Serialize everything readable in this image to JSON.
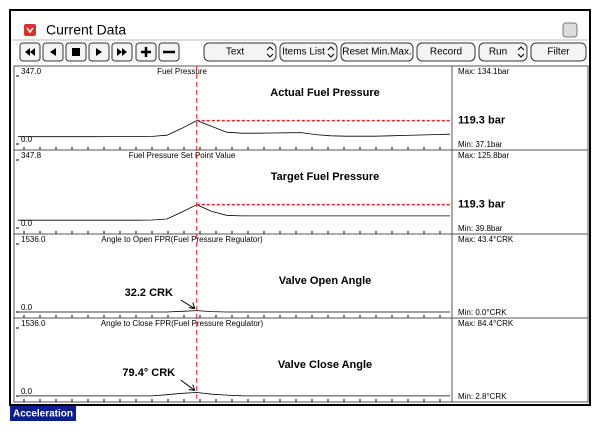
{
  "window": {
    "title": "Current Data",
    "buttons": [
      "Text",
      "Items List",
      "Reset Min.Max.",
      "Record",
      "Run",
      "Filter"
    ]
  },
  "chart_data": [
    {
      "type": "line",
      "name": "Fuel Pressure",
      "annotation": "Actual Fuel Pressure",
      "values": [
        37,
        37,
        37,
        37,
        37,
        37,
        38,
        38,
        38,
        39,
        45,
        80,
        119.3,
        90,
        60,
        55,
        55,
        56,
        57,
        58,
        48,
        42,
        40,
        40,
        40,
        42,
        44,
        46,
        48,
        50
      ],
      "ylim": [
        0,
        347
      ],
      "yticks": [
        {
          "value": 0,
          "label": "0.0"
        },
        {
          "value": 347,
          "label": "347.0"
        }
      ],
      "cursor_value": 119.3,
      "cursor_label": "119.3 bar",
      "max_label": "Max: 134.1bar",
      "min_label": "Min:  37.1bar"
    },
    {
      "type": "line",
      "name": "Fuel Pressure Set Point Value",
      "annotation": "Target Fuel Pressure",
      "values": [
        40,
        40,
        40,
        40,
        40,
        40,
        40,
        40,
        40,
        41,
        46,
        82,
        119.3,
        85,
        65,
        62,
        62,
        62,
        62,
        62,
        62,
        62,
        62,
        62,
        62,
        62,
        62,
        62,
        62,
        62
      ],
      "ylim": [
        0,
        347.8
      ],
      "yticks": [
        {
          "value": 0,
          "label": "0.0"
        },
        {
          "value": 347.8,
          "label": "347.8"
        }
      ],
      "cursor_value": 119.3,
      "cursor_label": "119.3 bar",
      "max_label": "Max: 125.8bar",
      "min_label": "Min:  39.8bar"
    },
    {
      "type": "line",
      "name": "Angle to Open FPR(Fuel Pressure Regulator)",
      "annotation": "Valve Open Angle",
      "values": [
        0,
        0,
        0,
        0,
        0,
        0,
        0,
        0,
        0,
        0,
        0,
        15,
        32.2,
        10,
        0,
        0,
        0,
        0,
        0,
        0,
        0,
        0,
        0,
        0,
        0,
        0,
        0,
        0,
        0,
        0
      ],
      "ylim": [
        0,
        1536
      ],
      "yticks": [
        {
          "value": 0,
          "label": "0.0"
        },
        {
          "value": 1536,
          "label": "1536.0"
        }
      ],
      "cursor_value": 32.2,
      "cursor_label": "32.2  CRK",
      "max_label": "Max:  43.4°CRK",
      "min_label": "Min:   0.0°CRK"
    },
    {
      "type": "line",
      "name": "Angle to Close FPR(Fuel Pressure Regulator)",
      "annotation": "Valve Close Angle",
      "values": [
        3,
        3,
        3,
        3,
        3,
        3,
        3,
        3,
        3,
        3,
        30,
        60,
        79.4,
        40,
        20,
        5,
        3,
        3,
        3,
        3,
        3,
        3,
        3,
        3,
        3,
        3,
        3,
        3,
        3,
        3
      ],
      "ylim": [
        0,
        1536
      ],
      "yticks": [
        {
          "value": 0,
          "label": "0.0"
        },
        {
          "value": 1536,
          "label": "1536.0"
        }
      ],
      "cursor_value": 79.4,
      "cursor_label": "79.4° CRK",
      "max_label": "Max:  84.4°CRK",
      "min_label": "Min:   2.8°CRK"
    }
  ],
  "footer": "Acceleration"
}
